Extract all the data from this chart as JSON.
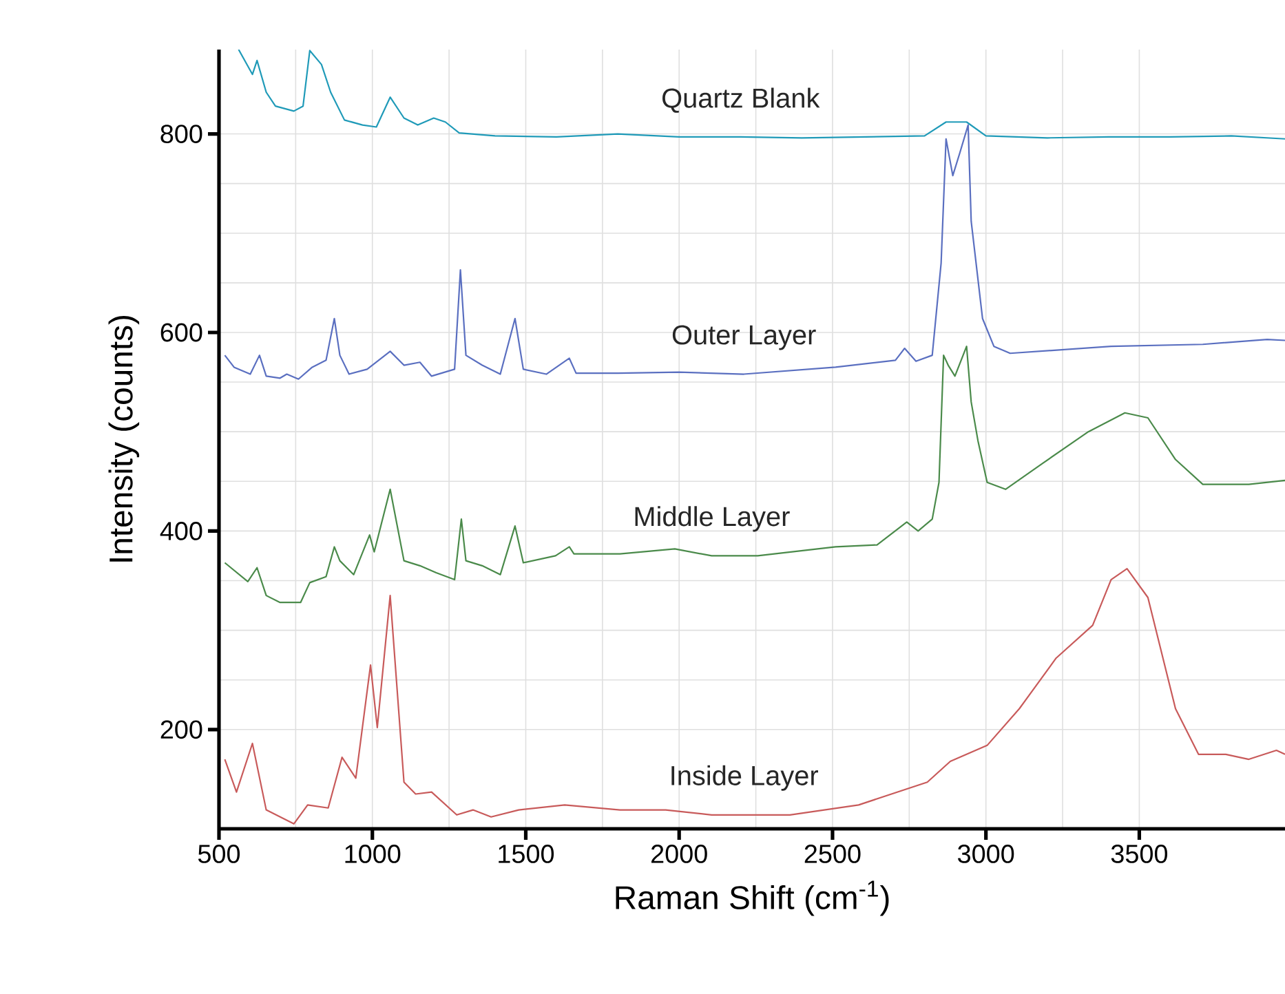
{
  "chart_data": {
    "type": "line",
    "xlabel": "Raman Shift (cm$^{-1}$)",
    "ylabel": "Intensity (counts)",
    "xlim": [
      500,
      3975
    ],
    "ylim": [
      100,
      885
    ],
    "xticks": [
      500,
      1000,
      1500,
      2000,
      2500,
      3000,
      3500
    ],
    "yticks": [
      200,
      400,
      600,
      800
    ],
    "grid": true,
    "series": [
      {
        "name": "Quartz Blank",
        "color": "#1f9ab8",
        "x": [
          564,
          609,
          624,
          654,
          684,
          744,
          774,
          796,
          834,
          864,
          909,
          968,
          1013,
          1058,
          1103,
          1148,
          1200,
          1238,
          1283,
          1400,
          1600,
          1800,
          2000,
          2200,
          2400,
          2600,
          2800,
          2870,
          2937,
          3000,
          3200,
          3400,
          3600,
          3800,
          3975
        ],
        "values": [
          885,
          860,
          874,
          842,
          828,
          823,
          828,
          884,
          870,
          842,
          814,
          809,
          807,
          837,
          816,
          809,
          816,
          812,
          801,
          798,
          797,
          800,
          797,
          797,
          796,
          797,
          798,
          812,
          812,
          798,
          796,
          797,
          797,
          798,
          795
        ]
      },
      {
        "name": "Outer Layer",
        "color": "#5a6fc0",
        "x": [
          519,
          549,
          602,
          632,
          654,
          699,
          721,
          759,
          804,
          849,
          876,
          894,
          924,
          983,
          1058,
          1103,
          1155,
          1193,
          1268,
          1287,
          1305,
          1358,
          1417,
          1465,
          1492,
          1567,
          1642,
          1664,
          1800,
          2000,
          2211,
          2510,
          2705,
          2735,
          2772,
          2825,
          2854,
          2870,
          2892,
          2915,
          2942,
          2952,
          2989,
          3026,
          3079,
          3408,
          3707,
          3917,
          3975
        ],
        "values": [
          577,
          565,
          558,
          577,
          556,
          554,
          558,
          553,
          565,
          572,
          614,
          577,
          558,
          563,
          581,
          567,
          570,
          556,
          563,
          663,
          577,
          567,
          558,
          614,
          563,
          558,
          574,
          559,
          559,
          560,
          558,
          565,
          572,
          584,
          571,
          577,
          670,
          795,
          758,
          781,
          809,
          712,
          614,
          586,
          579,
          586,
          588,
          593,
          592
        ]
      },
      {
        "name": "Middle Layer",
        "color": "#4a8a4a",
        "x": [
          519,
          594,
          624,
          654,
          699,
          766,
          796,
          849,
          876,
          894,
          939,
          991,
          1006,
          1058,
          1103,
          1155,
          1208,
          1268,
          1290,
          1305,
          1358,
          1417,
          1465,
          1492,
          1597,
          1642,
          1657,
          1807,
          1986,
          2106,
          2256,
          2510,
          2645,
          2742,
          2779,
          2825,
          2847,
          2862,
          2877,
          2899,
          2937,
          2952,
          2974,
          3004,
          3064,
          3184,
          3334,
          3453,
          3528,
          3618,
          3707,
          3857,
          3975
        ],
        "values": [
          368,
          349,
          363,
          335,
          328,
          328,
          348,
          354,
          384,
          370,
          356,
          396,
          379,
          442,
          370,
          365,
          358,
          351,
          412,
          370,
          365,
          356,
          405,
          368,
          375,
          384,
          377,
          377,
          382,
          375,
          375,
          384,
          386,
          409,
          400,
          412,
          449,
          577,
          567,
          556,
          586,
          530,
          491,
          449,
          442,
          468,
          500,
          519,
          514,
          472,
          447,
          447,
          451
        ]
      },
      {
        "name": "Inside Layer",
        "color": "#c85a5a",
        "x": [
          519,
          557,
          609,
          654,
          744,
          789,
          856,
          901,
          946,
          994,
          1016,
          1058,
          1103,
          1141,
          1193,
          1275,
          1328,
          1387,
          1477,
          1627,
          1807,
          1956,
          2106,
          2211,
          2361,
          2585,
          2809,
          2884,
          3004,
          3109,
          3229,
          3348,
          3408,
          3460,
          3528,
          3618,
          3693,
          3782,
          3857,
          3947,
          3975
        ],
        "values": [
          170,
          137,
          186,
          119,
          105,
          124,
          121,
          172,
          151,
          265,
          202,
          335,
          147,
          135,
          137,
          114,
          119,
          112,
          119,
          124,
          119,
          119,
          114,
          114,
          114,
          124,
          147,
          168,
          184,
          221,
          272,
          305,
          351,
          362,
          333,
          221,
          175,
          175,
          170,
          179,
          175
        ]
      }
    ]
  }
}
